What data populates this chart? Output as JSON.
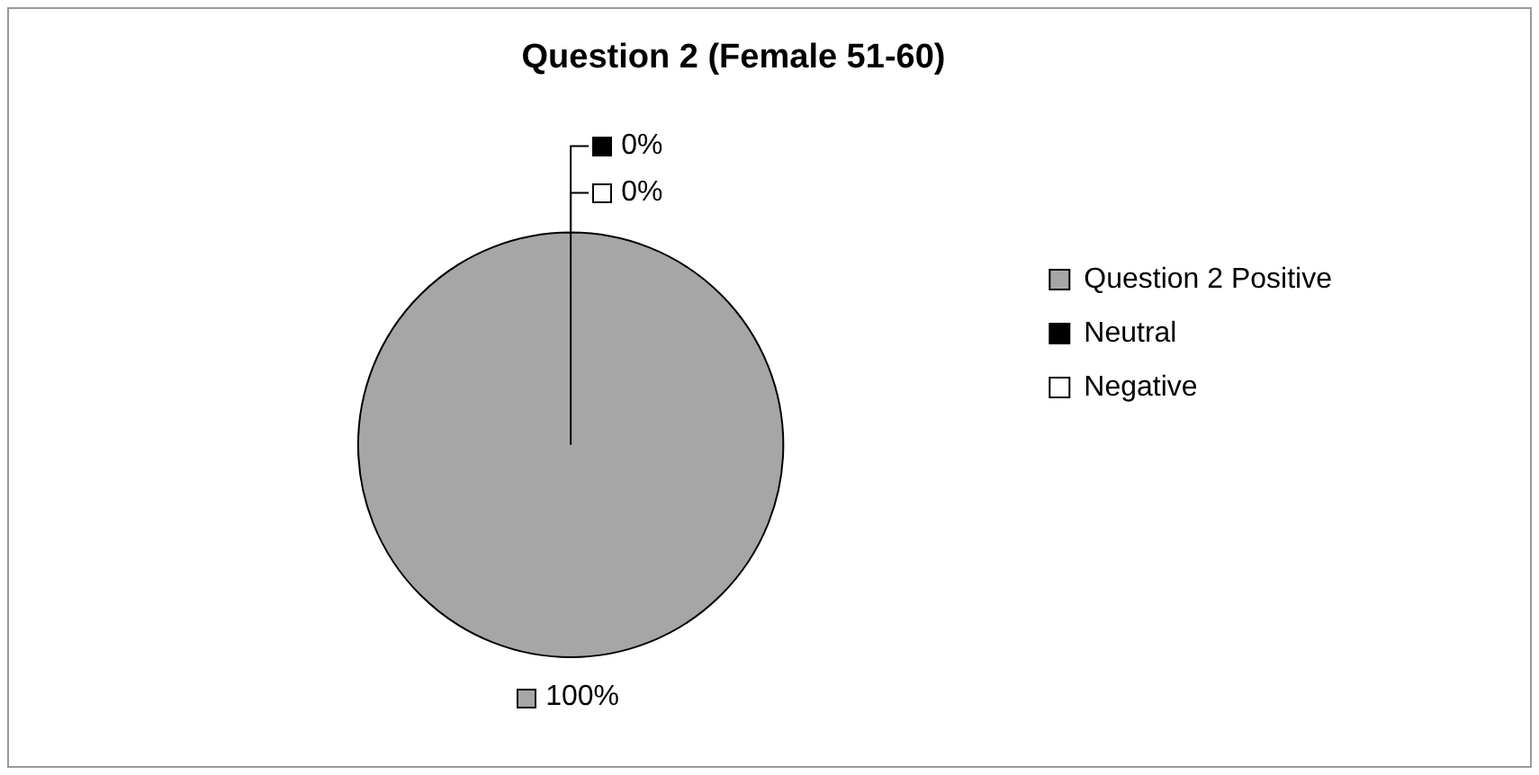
{
  "chart_data": {
    "type": "pie",
    "title": "Question 2 (Female 51-60)",
    "categories": [
      "Question 2 Positive",
      "Neutral",
      "Negative"
    ],
    "values": [
      100,
      0,
      0
    ],
    "colors": [
      "#a6a6a6",
      "#000000",
      "#ffffff"
    ],
    "value_labels": [
      "100%",
      "0%",
      "0%"
    ],
    "legend": "right"
  }
}
